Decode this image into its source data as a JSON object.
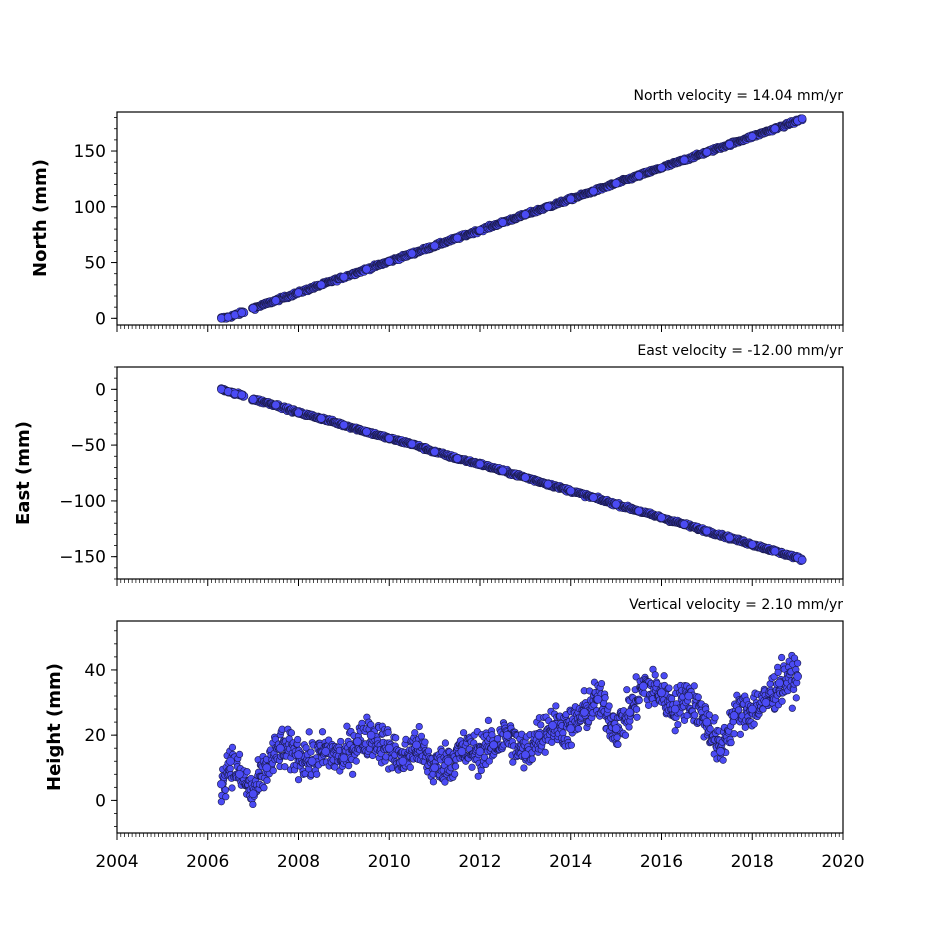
{
  "chart_data": [
    {
      "type": "scatter",
      "title": "North velocity = 14.04 mm/yr",
      "ylabel": "North (mm)",
      "xlim": [
        2004,
        2020
      ],
      "ylim": [
        -6,
        185
      ],
      "yticks": [
        0,
        50,
        100,
        150
      ],
      "ytick_labels": [
        "0",
        "50",
        "100",
        "150"
      ],
      "xticks": [
        2004,
        2006,
        2008,
        2010,
        2012,
        2014,
        2016,
        2018,
        2020
      ],
      "marker_color": "#4b4bf5",
      "edge_color": "#1a1a4a",
      "series": [
        {
          "values_x": [
            2006.3,
            2006.45,
            2006.6,
            2006.75,
            2007.0,
            2007.5,
            2008.0,
            2008.5,
            2009.0,
            2009.5,
            2010.0,
            2010.5,
            2011.0,
            2011.5,
            2012.0,
            2012.5,
            2013.0,
            2013.5,
            2014.0,
            2014.5,
            2015.0,
            2015.5,
            2016.0,
            2016.5,
            2017.0,
            2017.5,
            2018.0,
            2018.5,
            2019.0,
            2019.1
          ],
          "values_y": [
            0,
            1,
            3,
            5,
            9,
            16,
            23,
            30,
            37,
            44,
            51,
            58,
            65,
            72,
            79,
            86,
            93,
            100,
            107,
            114,
            121,
            128,
            135,
            142,
            149,
            156,
            163,
            170,
            177,
            179
          ]
        }
      ]
    },
    {
      "type": "scatter",
      "title": "East velocity = -12.00 mm/yr",
      "ylabel": "East (mm)",
      "xlim": [
        2004,
        2020
      ],
      "ylim": [
        -170,
        20
      ],
      "yticks": [
        0,
        -50,
        -100,
        -150
      ],
      "ytick_labels": [
        "0",
        "−50",
        "−100",
        "−150"
      ],
      "xticks": [
        2004,
        2006,
        2008,
        2010,
        2012,
        2014,
        2016,
        2018,
        2020
      ],
      "marker_color": "#4b4bf5",
      "edge_color": "#1a1a4a",
      "series": [
        {
          "values_x": [
            2006.3,
            2006.45,
            2006.6,
            2006.75,
            2007.0,
            2007.5,
            2008.0,
            2008.5,
            2009.0,
            2009.5,
            2010.0,
            2010.5,
            2011.0,
            2011.5,
            2012.0,
            2012.5,
            2013.0,
            2013.5,
            2014.0,
            2014.5,
            2015.0,
            2015.5,
            2016.0,
            2016.5,
            2017.0,
            2017.5,
            2018.0,
            2018.5,
            2019.0,
            2019.1
          ],
          "values_y": [
            0,
            -2,
            -4,
            -5,
            -9,
            -14,
            -21,
            -26,
            -32,
            -38,
            -44,
            -49,
            -56,
            -62,
            -67,
            -73,
            -79,
            -85,
            -91,
            -97,
            -103,
            -109,
            -115,
            -121,
            -127,
            -133,
            -139,
            -145,
            -151,
            -153
          ]
        }
      ]
    },
    {
      "type": "scatter",
      "title": "Vertical velocity = 2.10 mm/yr",
      "ylabel": "Height (mm)",
      "xlim": [
        2004,
        2020
      ],
      "ylim": [
        -10,
        55
      ],
      "yticks": [
        0,
        20,
        40
      ],
      "ytick_labels": [
        "0",
        "20",
        "40"
      ],
      "xticks": [
        2004,
        2006,
        2008,
        2010,
        2012,
        2014,
        2016,
        2018,
        2020
      ],
      "xtick_labels": [
        "2004",
        "2006",
        "2008",
        "2010",
        "2012",
        "2014",
        "2016",
        "2018",
        "2020"
      ],
      "marker_color": "#4b4bf5",
      "edge_color": "#1a1a4a",
      "series": [
        {
          "values_x": [
            2006.3,
            2006.5,
            2006.7,
            2007.0,
            2007.3,
            2007.6,
            2008.0,
            2008.3,
            2008.6,
            2009.0,
            2009.3,
            2009.6,
            2010.0,
            2010.3,
            2010.6,
            2011.0,
            2011.3,
            2011.6,
            2012.0,
            2012.3,
            2012.6,
            2013.0,
            2013.3,
            2013.6,
            2014.0,
            2014.3,
            2014.6,
            2015.0,
            2015.3,
            2015.6,
            2016.0,
            2016.3,
            2016.6,
            2017.0,
            2017.3,
            2017.6,
            2018.0,
            2018.3,
            2018.6,
            2019.0
          ],
          "values_y": [
            5,
            12,
            8,
            2,
            10,
            16,
            14,
            12,
            15,
            13,
            18,
            20,
            16,
            12,
            17,
            10,
            12,
            15,
            15,
            17,
            20,
            14,
            20,
            23,
            22,
            27,
            31,
            22,
            27,
            35,
            33,
            28,
            32,
            24,
            15,
            26,
            28,
            30,
            36,
            38
          ]
        }
      ]
    }
  ]
}
